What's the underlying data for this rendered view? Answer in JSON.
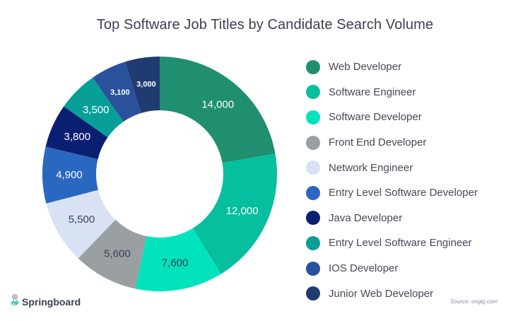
{
  "chart_data": {
    "type": "pie",
    "subtype": "donut",
    "title": "Top Software Job Titles by Candidate Search Volume",
    "categories": [
      "Web Developer",
      "Software Engineer",
      "Software Developer",
      "Front End Developer",
      "Network Engineer",
      "Entry Level Software Developer",
      "Java Developer",
      "Entry Level Software Engineer",
      "IOS Developer",
      "Junior Web Developer"
    ],
    "values": [
      14000,
      12000,
      7600,
      5600,
      5500,
      4900,
      3800,
      3500,
      3100,
      3000
    ],
    "value_labels": [
      "14,000",
      "12,000",
      "7,600",
      "5,600",
      "5,500",
      "4,900",
      "3,800",
      "3,500",
      "3,100",
      "3,000"
    ],
    "colors": [
      "#1f8f70",
      "#06bf9e",
      "#00e3bc",
      "#9a9fa1",
      "#d9e2f3",
      "#2a67c1",
      "#0b1f72",
      "#079f98",
      "#2a519b",
      "#203b72"
    ],
    "label_colors": [
      "#ffffff",
      "#ffffff",
      "#3d3f55",
      "#3d3f55",
      "#3d3f55",
      "#ffffff",
      "#ffffff",
      "#ffffff",
      "#ffffff",
      "#ffffff"
    ],
    "legend_position": "right",
    "start_angle": "top, clockwise"
  },
  "title": "Top Software Job Titles by Candidate Search Volume",
  "legend": [
    {
      "label": "Web Developer",
      "color": "#1f8f70"
    },
    {
      "label": "Software Engineer",
      "color": "#06bf9e"
    },
    {
      "label": "Software Developer",
      "color": "#00e3bc"
    },
    {
      "label": "Front End Developer",
      "color": "#9a9fa1"
    },
    {
      "label": "Network Engineer",
      "color": "#d9e2f3"
    },
    {
      "label": "Entry Level Software Developer",
      "color": "#2a67c1"
    },
    {
      "label": "Java Developer",
      "color": "#0b1f72"
    },
    {
      "label": "Entry Level Software Engineer",
      "color": "#079f98"
    },
    {
      "label": "IOS Developer",
      "color": "#2a519b"
    },
    {
      "label": "Junior Web Developer",
      "color": "#203b72"
    }
  ],
  "branding": {
    "logo_text": "Springboard",
    "logo_icon": "springboard-leaf-icon"
  },
  "source": "Source: ongig.com"
}
